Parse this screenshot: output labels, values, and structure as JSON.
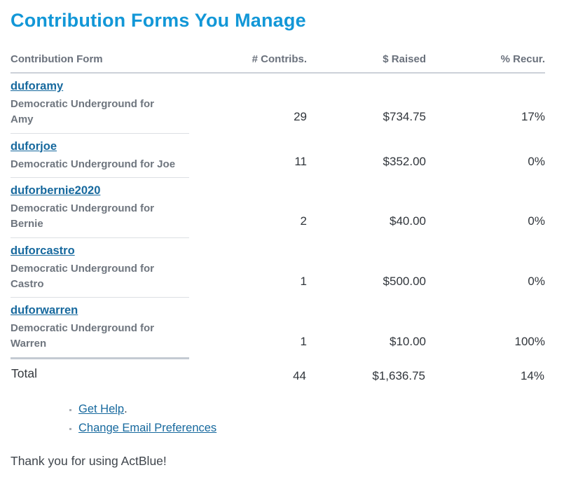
{
  "page": {
    "title": "Contribution Forms You Manage",
    "thanks": "Thank you for using ActBlue!"
  },
  "colors": {
    "title_blue": "#1297d7",
    "link_blue": "#17699e",
    "header_gray": "#6a717c",
    "description_gray": "#6e757e",
    "number_dark": "#30353b"
  },
  "table": {
    "headers": [
      "Contribution Form",
      "# Contribs.",
      "$ Raised",
      "% Recur."
    ],
    "rows": [
      {
        "slug": "duforamy",
        "name": "Democratic Underground for Amy",
        "contribs": "29",
        "raised": "$734.75",
        "recur": "17%"
      },
      {
        "slug": "duforjoe",
        "name": "Democratic Underground for Joe",
        "contribs": "11",
        "raised": "$352.00",
        "recur": "0%"
      },
      {
        "slug": "duforbernie2020",
        "name": "Democratic Underground for Bernie",
        "contribs": "2",
        "raised": "$40.00",
        "recur": "0%"
      },
      {
        "slug": "duforcastro",
        "name": "Democratic Underground for Castro",
        "contribs": "1",
        "raised": "$500.00",
        "recur": "0%"
      },
      {
        "slug": "duforwarren",
        "name": "Democratic Underground for Warren",
        "contribs": "1",
        "raised": "$10.00",
        "recur": "100%"
      }
    ],
    "total": {
      "label": "Total",
      "contribs": "44",
      "raised": "$1,636.75",
      "recur": "14%"
    }
  },
  "footer": {
    "links": [
      {
        "label": "Get Help",
        "suffix": "."
      },
      {
        "label": "Change Email Preferences",
        "suffix": ""
      }
    ]
  }
}
